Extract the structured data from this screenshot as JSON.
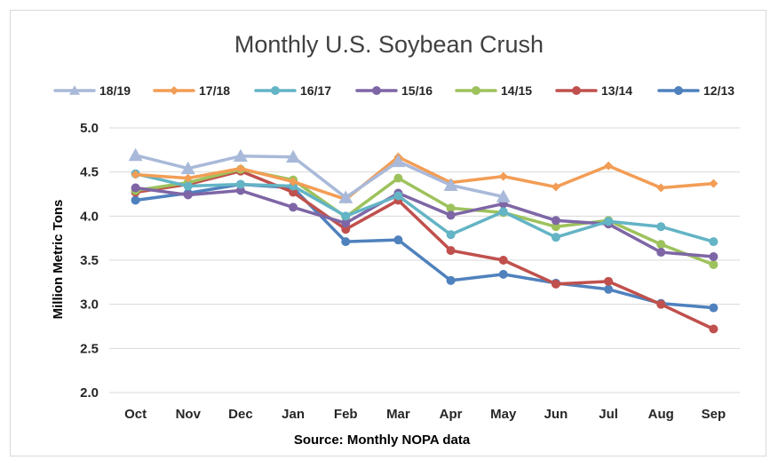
{
  "chart_data": {
    "type": "line",
    "title": "Monthly U.S. Soybean Crush",
    "xlabel": "Source: Monthly NOPA data",
    "ylabel": "Million Metric Tons",
    "ylim": [
      2.0,
      5.0
    ],
    "yticks": [
      "2.0",
      "2.5",
      "3.0",
      "3.5",
      "4.0",
      "4.5",
      "5.0"
    ],
    "grid": "horizontal",
    "legend_position": "top",
    "categories": [
      "Oct",
      "Nov",
      "Dec",
      "Jan",
      "Feb",
      "Mar",
      "Apr",
      "May",
      "Jun",
      "Jul",
      "Aug",
      "Sep"
    ],
    "series": [
      {
        "name": "18/19",
        "color": "#a9b9d9",
        "marker": "triangle",
        "values": [
          4.69,
          4.54,
          4.68,
          4.67,
          4.21,
          4.62,
          4.35,
          4.22,
          null,
          null,
          null,
          null
        ]
      },
      {
        "name": "17/18",
        "color": "#f29d55",
        "marker": "diamond",
        "values": [
          4.47,
          4.43,
          4.54,
          4.39,
          4.19,
          4.67,
          4.38,
          4.45,
          4.33,
          4.57,
          4.32,
          4.37
        ]
      },
      {
        "name": "16/17",
        "color": "#63b4c5",
        "marker": "circle",
        "values": [
          4.48,
          4.34,
          4.36,
          4.34,
          4.0,
          4.23,
          3.79,
          4.05,
          3.76,
          3.94,
          3.88,
          3.71
        ]
      },
      {
        "name": "15/16",
        "color": "#7e66a6",
        "marker": "circle",
        "values": [
          4.32,
          4.24,
          4.29,
          4.1,
          3.92,
          4.26,
          4.01,
          4.14,
          3.95,
          3.91,
          3.59,
          3.54
        ]
      },
      {
        "name": "14/15",
        "color": "#9dc25c",
        "marker": "circle",
        "values": [
          4.29,
          4.38,
          4.53,
          4.41,
          3.99,
          4.43,
          4.09,
          4.04,
          3.88,
          3.95,
          3.68,
          3.45
        ]
      },
      {
        "name": "13/14",
        "color": "#c0504d",
        "marker": "circle",
        "values": [
          4.27,
          4.36,
          4.51,
          4.27,
          3.85,
          4.18,
          3.61,
          3.5,
          3.23,
          3.26,
          3.0,
          2.72
        ]
      },
      {
        "name": "12/13",
        "color": "#4f81bd",
        "marker": "circle",
        "values": [
          4.18,
          4.26,
          4.36,
          4.32,
          3.71,
          3.73,
          3.27,
          3.34,
          3.24,
          3.17,
          3.01,
          2.96
        ]
      }
    ]
  }
}
